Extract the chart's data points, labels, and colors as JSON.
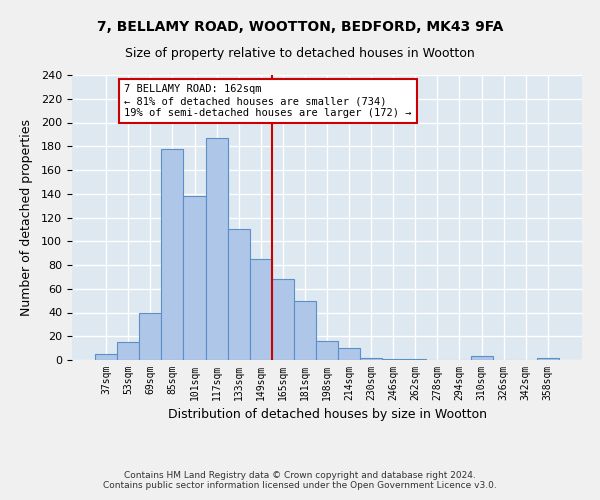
{
  "title_line1": "7, BELLAMY ROAD, WOOTTON, BEDFORD, MK43 9FA",
  "title_line2": "Size of property relative to detached houses in Wootton",
  "xlabel": "Distribution of detached houses by size in Wootton",
  "ylabel": "Number of detached properties",
  "bar_labels": [
    "37sqm",
    "53sqm",
    "69sqm",
    "85sqm",
    "101sqm",
    "117sqm",
    "133sqm",
    "149sqm",
    "165sqm",
    "181sqm",
    "198sqm",
    "214sqm",
    "230sqm",
    "246sqm",
    "262sqm",
    "278sqm",
    "294sqm",
    "310sqm",
    "326sqm",
    "342sqm",
    "358sqm"
  ],
  "bar_heights": [
    5,
    15,
    40,
    178,
    138,
    187,
    110,
    85,
    68,
    50,
    16,
    10,
    2,
    1,
    1,
    0,
    0,
    3,
    0,
    0,
    2
  ],
  "bar_color": "#aec6e8",
  "bar_edge_color": "#5b8fc9",
  "vline_index": 8,
  "vline_color": "#cc0000",
  "annotation_text": "7 BELLAMY ROAD: 162sqm\n← 81% of detached houses are smaller (734)\n19% of semi-detached houses are larger (172) →",
  "annotation_box_color": "#cc0000",
  "annotation_text_color": "#000000",
  "ylim": [
    0,
    240
  ],
  "yticks": [
    0,
    20,
    40,
    60,
    80,
    100,
    120,
    140,
    160,
    180,
    200,
    220,
    240
  ],
  "background_color": "#dde8f0",
  "grid_color": "#ffffff",
  "fig_background": "#f0f0f0",
  "footer_line1": "Contains HM Land Registry data © Crown copyright and database right 2024.",
  "footer_line2": "Contains public sector information licensed under the Open Government Licence v3.0."
}
